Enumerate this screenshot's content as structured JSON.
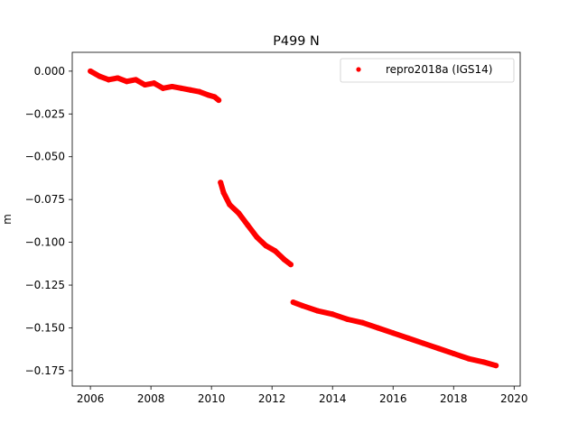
{
  "chart_data": {
    "type": "scatter",
    "title": "P499 N",
    "xlabel": "",
    "ylabel": "m",
    "xlim": [
      2005.4,
      2020.2
    ],
    "ylim": [
      -0.184,
      0.011
    ],
    "xticks": [
      2006,
      2008,
      2010,
      2012,
      2014,
      2016,
      2018,
      2020
    ],
    "yticks": [
      0.0,
      -0.025,
      -0.05,
      -0.075,
      -0.1,
      -0.125,
      -0.15,
      -0.175
    ],
    "ytick_labels": [
      "0.000",
      "−0.025",
      "−0.050",
      "−0.075",
      "−0.100",
      "−0.125",
      "−0.150",
      "−0.175"
    ],
    "grid": false,
    "legend_position": "top-right",
    "series": [
      {
        "name": "repro2018a (IGS14)",
        "color": "#ff0000",
        "marker": "circle",
        "x": [
          2006.0,
          2006.3,
          2006.6,
          2006.9,
          2007.2,
          2007.5,
          2007.8,
          2008.1,
          2008.4,
          2008.7,
          2009.0,
          2009.3,
          2009.6,
          2009.9,
          2010.1,
          2010.24,
          2010.3,
          2010.4,
          2010.6,
          2010.9,
          2011.2,
          2011.5,
          2011.8,
          2012.1,
          2012.4,
          2012.62,
          2012.7,
          2013.0,
          2013.5,
          2014.0,
          2014.5,
          2015.0,
          2015.5,
          2016.0,
          2016.5,
          2017.0,
          2017.5,
          2018.0,
          2018.5,
          2019.0,
          2019.4
        ],
        "y": [
          0.0,
          -0.003,
          -0.005,
          -0.004,
          -0.006,
          -0.005,
          -0.008,
          -0.007,
          -0.01,
          -0.009,
          -0.01,
          -0.011,
          -0.012,
          -0.014,
          -0.015,
          -0.017,
          -0.065,
          -0.071,
          -0.078,
          -0.083,
          -0.09,
          -0.097,
          -0.102,
          -0.105,
          -0.11,
          -0.113,
          -0.135,
          -0.137,
          -0.14,
          -0.142,
          -0.145,
          -0.147,
          -0.15,
          -0.153,
          -0.156,
          -0.159,
          -0.162,
          -0.165,
          -0.168,
          -0.17,
          -0.172
        ]
      }
    ]
  }
}
